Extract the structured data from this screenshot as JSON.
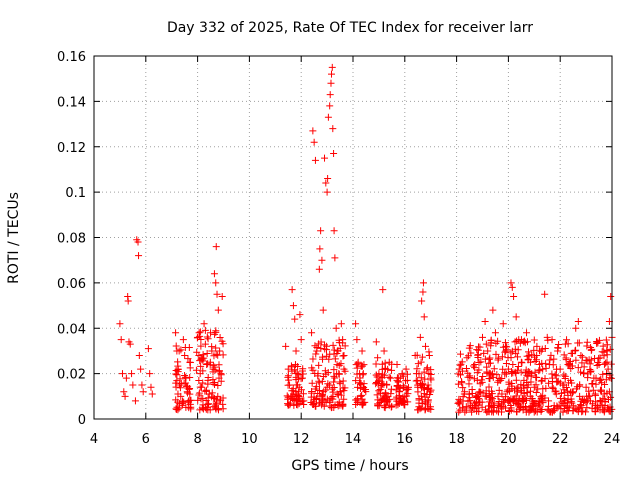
{
  "chart_data": {
    "type": "scatter",
    "title": "Day 332 of 2025, Rate Of TEC Index for receiver larr",
    "xlabel": "GPS time / hours",
    "ylabel": "ROTI / TECUs",
    "xlim": [
      4,
      24
    ],
    "ylim": [
      0,
      0.16
    ],
    "xticks": [
      4,
      6,
      8,
      10,
      12,
      14,
      16,
      18,
      20,
      22,
      24
    ],
    "xtick_labels": [
      "4",
      "6",
      "8",
      "10",
      "12",
      "14",
      "16",
      "18",
      "20",
      "22",
      "24"
    ],
    "yticks": [
      0,
      0.02,
      0.04,
      0.06,
      0.08,
      0.1,
      0.12,
      0.14,
      0.16
    ],
    "ytick_labels": [
      "0",
      "0.02",
      "0.04",
      "0.06",
      "0.08",
      "0.1",
      "0.12",
      "0.14",
      "0.16"
    ],
    "grid": true,
    "marker": "+",
    "marker_color": "#ff0000",
    "series": [
      {
        "name": "ROTI",
        "points": [
          [
            5.0,
            0.042
          ],
          [
            5.05,
            0.035
          ],
          [
            5.1,
            0.02
          ],
          [
            5.15,
            0.012
          ],
          [
            5.2,
            0.01
          ],
          [
            5.25,
            0.018
          ],
          [
            5.3,
            0.054
          ],
          [
            5.32,
            0.052
          ],
          [
            5.35,
            0.034
          ],
          [
            5.4,
            0.033
          ],
          [
            5.45,
            0.02
          ],
          [
            5.5,
            0.015
          ],
          [
            5.6,
            0.008
          ],
          [
            5.65,
            0.079
          ],
          [
            5.7,
            0.078
          ],
          [
            5.72,
            0.072
          ],
          [
            5.75,
            0.028
          ],
          [
            5.8,
            0.022
          ],
          [
            5.85,
            0.015
          ],
          [
            5.9,
            0.012
          ],
          [
            6.1,
            0.031
          ],
          [
            6.15,
            0.02
          ],
          [
            6.2,
            0.014
          ],
          [
            6.25,
            0.011
          ],
          [
            7.15,
            0.038
          ],
          [
            7.2,
            0.03
          ],
          [
            7.25,
            0.022
          ],
          [
            7.3,
            0.015
          ],
          [
            7.35,
            0.01
          ],
          [
            7.4,
            0.006
          ],
          [
            7.45,
            0.035
          ],
          [
            7.5,
            0.028
          ],
          [
            7.55,
            0.018
          ],
          [
            7.6,
            0.012
          ],
          [
            7.65,
            0.008
          ],
          [
            7.7,
            0.025
          ],
          [
            8.0,
            0.036
          ],
          [
            8.05,
            0.028
          ],
          [
            8.1,
            0.02
          ],
          [
            8.15,
            0.014
          ],
          [
            8.2,
            0.009
          ],
          [
            8.25,
            0.042
          ],
          [
            8.3,
            0.033
          ],
          [
            8.35,
            0.024
          ],
          [
            8.4,
            0.017
          ],
          [
            8.45,
            0.011
          ],
          [
            8.5,
            0.038
          ],
          [
            8.55,
            0.03
          ],
          [
            8.6,
            0.022
          ],
          [
            8.65,
            0.064
          ],
          [
            8.7,
            0.06
          ],
          [
            8.72,
            0.076
          ],
          [
            8.75,
            0.055
          ],
          [
            8.8,
            0.048
          ],
          [
            8.85,
            0.03
          ],
          [
            8.9,
            0.02
          ],
          [
            8.95,
            0.054
          ],
          [
            8.6,
            0.016
          ],
          [
            8.3,
            0.005
          ],
          [
            11.4,
            0.032
          ],
          [
            11.5,
            0.022
          ],
          [
            11.55,
            0.015
          ],
          [
            11.6,
            0.01
          ],
          [
            11.65,
            0.057
          ],
          [
            11.7,
            0.05
          ],
          [
            11.75,
            0.044
          ],
          [
            11.8,
            0.03
          ],
          [
            11.85,
            0.02
          ],
          [
            11.9,
            0.012
          ],
          [
            11.95,
            0.046
          ],
          [
            12.0,
            0.035
          ],
          [
            12.05,
            0.018
          ],
          [
            12.1,
            0.008
          ],
          [
            12.4,
            0.038
          ],
          [
            12.45,
            0.127
          ],
          [
            12.5,
            0.122
          ],
          [
            12.55,
            0.114
          ],
          [
            12.6,
            0.03
          ],
          [
            12.65,
            0.02
          ],
          [
            12.7,
            0.066
          ],
          [
            12.72,
            0.075
          ],
          [
            12.75,
            0.083
          ],
          [
            12.8,
            0.07
          ],
          [
            12.85,
            0.048
          ],
          [
            12.9,
            0.115
          ],
          [
            12.95,
            0.104
          ],
          [
            13.0,
            0.1
          ],
          [
            13.02,
            0.106
          ],
          [
            13.05,
            0.133
          ],
          [
            13.1,
            0.138
          ],
          [
            13.12,
            0.143
          ],
          [
            13.15,
            0.148
          ],
          [
            13.17,
            0.152
          ],
          [
            13.2,
            0.155
          ],
          [
            13.22,
            0.128
          ],
          [
            13.25,
            0.117
          ],
          [
            13.27,
            0.083
          ],
          [
            13.3,
            0.071
          ],
          [
            13.35,
            0.04
          ],
          [
            13.4,
            0.03
          ],
          [
            13.45,
            0.02
          ],
          [
            13.5,
            0.012
          ],
          [
            13.55,
            0.042
          ],
          [
            13.6,
            0.035
          ],
          [
            13.65,
            0.022
          ],
          [
            13.0,
            0.014
          ],
          [
            12.8,
            0.01
          ],
          [
            13.1,
            0.008
          ],
          [
            14.1,
            0.042
          ],
          [
            14.15,
            0.035
          ],
          [
            14.2,
            0.025
          ],
          [
            14.25,
            0.016
          ],
          [
            14.3,
            0.01
          ],
          [
            14.35,
            0.03
          ],
          [
            14.4,
            0.02
          ],
          [
            14.45,
            0.013
          ],
          [
            14.9,
            0.034
          ],
          [
            14.95,
            0.027
          ],
          [
            15.0,
            0.02
          ],
          [
            15.05,
            0.013
          ],
          [
            15.1,
            0.008
          ],
          [
            15.15,
            0.057
          ],
          [
            15.2,
            0.03
          ],
          [
            15.25,
            0.022
          ],
          [
            15.3,
            0.015
          ],
          [
            15.35,
            0.01
          ],
          [
            15.4,
            0.025
          ],
          [
            15.45,
            0.018
          ],
          [
            15.7,
            0.024
          ],
          [
            15.75,
            0.018
          ],
          [
            15.8,
            0.012
          ],
          [
            15.85,
            0.009
          ],
          [
            15.9,
            0.02
          ],
          [
            15.95,
            0.014
          ],
          [
            16.0,
            0.01
          ],
          [
            16.05,
            0.022
          ],
          [
            16.4,
            0.028
          ],
          [
            16.45,
            0.02
          ],
          [
            16.5,
            0.014
          ],
          [
            16.55,
            0.009
          ],
          [
            16.6,
            0.036
          ],
          [
            16.65,
            0.052
          ],
          [
            16.7,
            0.056
          ],
          [
            16.72,
            0.06
          ],
          [
            16.75,
            0.045
          ],
          [
            16.8,
            0.032
          ],
          [
            16.85,
            0.022
          ],
          [
            16.9,
            0.015
          ],
          [
            16.95,
            0.028
          ],
          [
            17.0,
            0.018
          ],
          [
            18.1,
            0.022
          ],
          [
            18.2,
            0.016
          ],
          [
            18.3,
            0.011
          ],
          [
            18.4,
            0.027
          ],
          [
            18.5,
            0.019
          ],
          [
            18.6,
            0.013
          ],
          [
            18.7,
            0.024
          ],
          [
            18.8,
            0.017
          ],
          [
            18.9,
            0.012
          ],
          [
            19.0,
            0.036
          ],
          [
            19.1,
            0.043
          ],
          [
            19.2,
            0.03
          ],
          [
            19.3,
            0.02
          ],
          [
            19.4,
            0.048
          ],
          [
            19.5,
            0.038
          ],
          [
            19.6,
            0.026
          ],
          [
            19.7,
            0.017
          ],
          [
            19.8,
            0.042
          ],
          [
            19.9,
            0.032
          ],
          [
            20.0,
            0.022
          ],
          [
            20.1,
            0.06
          ],
          [
            20.15,
            0.058
          ],
          [
            20.2,
            0.054
          ],
          [
            20.3,
            0.045
          ],
          [
            20.4,
            0.035
          ],
          [
            20.5,
            0.025
          ],
          [
            20.6,
            0.017
          ],
          [
            20.7,
            0.038
          ],
          [
            20.8,
            0.028
          ],
          [
            20.9,
            0.02
          ],
          [
            21.0,
            0.014
          ],
          [
            21.1,
            0.032
          ],
          [
            21.2,
            0.024
          ],
          [
            21.3,
            0.017
          ],
          [
            21.4,
            0.055
          ],
          [
            21.5,
            0.036
          ],
          [
            21.6,
            0.026
          ],
          [
            21.7,
            0.018
          ],
          [
            21.8,
            0.012
          ],
          [
            21.9,
            0.03
          ],
          [
            22.0,
            0.022
          ],
          [
            22.1,
            0.015
          ],
          [
            22.2,
            0.033
          ],
          [
            22.3,
            0.024
          ],
          [
            22.4,
            0.017
          ],
          [
            22.5,
            0.012
          ],
          [
            22.6,
            0.04
          ],
          [
            22.7,
            0.043
          ],
          [
            22.8,
            0.028
          ],
          [
            22.9,
            0.02
          ],
          [
            23.0,
            0.014
          ],
          [
            23.1,
            0.01
          ],
          [
            23.2,
            0.026
          ],
          [
            23.3,
            0.018
          ],
          [
            23.4,
            0.034
          ],
          [
            23.5,
            0.024
          ],
          [
            23.6,
            0.016
          ],
          [
            23.7,
            0.011
          ],
          [
            23.8,
            0.03
          ],
          [
            23.85,
            0.022
          ],
          [
            23.9,
            0.043
          ],
          [
            23.95,
            0.054
          ],
          [
            24.0,
            0.036
          ],
          [
            18.25,
            0.008
          ],
          [
            18.55,
            0.006
          ],
          [
            18.85,
            0.009
          ],
          [
            19.15,
            0.01
          ],
          [
            19.45,
            0.007
          ],
          [
            19.75,
            0.011
          ],
          [
            20.05,
            0.008
          ],
          [
            20.35,
            0.012
          ],
          [
            20.65,
            0.009
          ],
          [
            20.95,
            0.007
          ],
          [
            21.25,
            0.01
          ],
          [
            21.55,
            0.008
          ],
          [
            21.85,
            0.011
          ],
          [
            22.15,
            0.009
          ],
          [
            22.45,
            0.007
          ],
          [
            22.75,
            0.01
          ],
          [
            23.05,
            0.008
          ],
          [
            23.35,
            0.011
          ],
          [
            23.65,
            0.009
          ],
          [
            23.9,
            0.012
          ]
        ]
      }
    ],
    "dense_bands": [
      {
        "x": [
          7.15,
          7.75
        ],
        "y": [
          0.004,
          0.034
        ]
      },
      {
        "x": [
          7.95,
          9.0
        ],
        "y": [
          0.004,
          0.04
        ]
      },
      {
        "x": [
          11.45,
          12.1
        ],
        "y": [
          0.006,
          0.024
        ]
      },
      {
        "x": [
          12.35,
          13.7
        ],
        "y": [
          0.005,
          0.035
        ]
      },
      {
        "x": [
          14.1,
          14.5
        ],
        "y": [
          0.006,
          0.025
        ]
      },
      {
        "x": [
          14.85,
          15.5
        ],
        "y": [
          0.005,
          0.026
        ]
      },
      {
        "x": [
          15.65,
          16.15
        ],
        "y": [
          0.006,
          0.02
        ]
      },
      {
        "x": [
          16.4,
          17.05
        ],
        "y": [
          0.004,
          0.03
        ]
      },
      {
        "x": [
          18.05,
          24.0
        ],
        "y": [
          0.003,
          0.035
        ]
      }
    ]
  }
}
